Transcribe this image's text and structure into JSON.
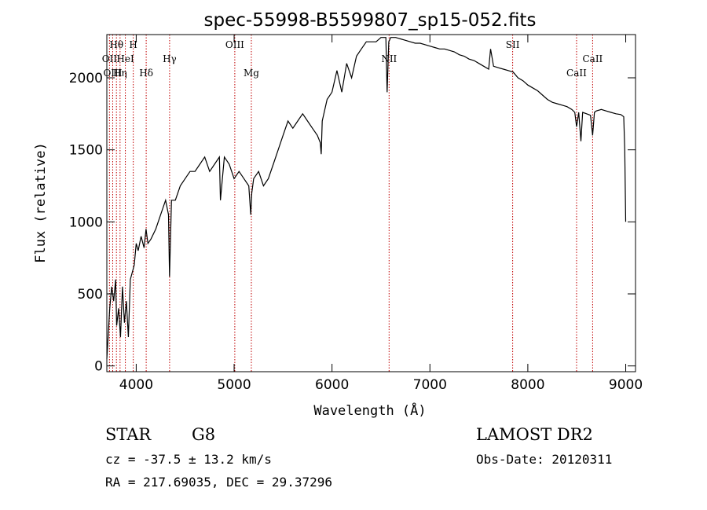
{
  "chart_data": {
    "type": "line",
    "title": "spec-55998-B5599807_sp15-052.fits",
    "xlabel": "Wavelength (Å)",
    "ylabel": "Flux (relative)",
    "xlim": [
      3700,
      9100
    ],
    "ylim": [
      -40,
      2300
    ],
    "xticks": [
      4000,
      5000,
      6000,
      7000,
      8000,
      9000
    ],
    "yticks": [
      0,
      500,
      1000,
      1500,
      2000
    ],
    "grid": false,
    "series": [
      {
        "x": [
          3700,
          3730,
          3750,
          3770,
          3790,
          3800,
          3820,
          3840,
          3860,
          3880,
          3900,
          3920,
          3940,
          3960,
          3980,
          4000,
          4020,
          4050,
          4080,
          4100,
          4120,
          4150,
          4200,
          4250,
          4300,
          4330,
          4340,
          4360,
          4400,
          4450,
          4500,
          4550,
          4600,
          4650,
          4700,
          4750,
          4800,
          4850,
          4860,
          4900,
          4950,
          5000,
          5050,
          5100,
          5150,
          5170,
          5180,
          5200,
          5250,
          5300,
          5350,
          5400,
          5450,
          5500,
          5550,
          5600,
          5650,
          5700,
          5750,
          5800,
          5850,
          5880,
          5890,
          5900,
          5950,
          6000,
          6050,
          6100,
          6150,
          6200,
          6250,
          6300,
          6350,
          6400,
          6450,
          6500,
          6550,
          6563,
          6580,
          6600,
          6650,
          6700,
          6750,
          6800,
          6850,
          6900,
          6950,
          7000,
          7050,
          7100,
          7150,
          7200,
          7250,
          7300,
          7350,
          7400,
          7450,
          7500,
          7550,
          7600,
          7620,
          7650,
          7700,
          7750,
          7800,
          7850,
          7900,
          7950,
          8000,
          8050,
          8100,
          8150,
          8200,
          8250,
          8300,
          8350,
          8400,
          8450,
          8480,
          8498,
          8520,
          8542,
          8560,
          8600,
          8640,
          8662,
          8680,
          8700,
          8750,
          8800,
          8850,
          8900,
          8950,
          8980,
          8990,
          9000
        ],
        "values": [
          50,
          400,
          550,
          450,
          600,
          280,
          400,
          200,
          550,
          300,
          450,
          200,
          600,
          650,
          700,
          850,
          800,
          900,
          820,
          950,
          850,
          880,
          950,
          1050,
          1150,
          1050,
          620,
          1150,
          1150,
          1250,
          1300,
          1350,
          1350,
          1400,
          1450,
          1350,
          1400,
          1450,
          1150,
          1450,
          1400,
          1300,
          1350,
          1300,
          1250,
          1050,
          1200,
          1300,
          1350,
          1250,
          1300,
          1400,
          1500,
          1600,
          1700,
          1650,
          1700,
          1750,
          1700,
          1650,
          1600,
          1550,
          1470,
          1700,
          1850,
          1900,
          2050,
          1900,
          2100,
          2000,
          2150,
          2200,
          2250,
          2250,
          2250,
          2280,
          2280,
          1900,
          2250,
          2280,
          2280,
          2270,
          2260,
          2250,
          2240,
          2240,
          2230,
          2220,
          2210,
          2200,
          2200,
          2190,
          2180,
          2160,
          2150,
          2130,
          2120,
          2100,
          2080,
          2060,
          2200,
          2080,
          2070,
          2060,
          2050,
          2040,
          2000,
          1980,
          1950,
          1930,
          1910,
          1880,
          1850,
          1830,
          1820,
          1810,
          1800,
          1780,
          1760,
          1660,
          1760,
          1560,
          1760,
          1750,
          1740,
          1600,
          1760,
          1770,
          1780,
          1770,
          1760,
          1750,
          1745,
          1730,
          1500,
          1000
        ]
      }
    ],
    "emission_lines": [
      {
        "label": "Hθ",
        "x": 3798
      },
      {
        "label": "H",
        "x": 3970
      },
      {
        "label": "OII",
        "x": 3727
      },
      {
        "label": "HeI",
        "x": 3889
      },
      {
        "label": "OIII",
        "x": 3760
      },
      {
        "label": "Hη",
        "x": 3835
      },
      {
        "label": "Hγ",
        "x": 4341
      },
      {
        "label": "Hδ",
        "x": 4102
      },
      {
        "label": "OIII",
        "x": 5007
      },
      {
        "label": "Mg",
        "x": 5176
      },
      {
        "label": "NII",
        "x": 6583
      },
      {
        "label": "SII",
        "x": 7845
      },
      {
        "label": "CaII",
        "x": 8662
      },
      {
        "label": "CaII",
        "x": 8498
      }
    ]
  },
  "footer": {
    "class": "STAR",
    "subclass": "G8",
    "survey": "LAMOST DR2",
    "cz": "cz = -37.5 ± 13.2 km/s",
    "obs_date": "Obs-Date: 20120311",
    "coords": "RA = 217.69035, DEC =  29.37296"
  }
}
